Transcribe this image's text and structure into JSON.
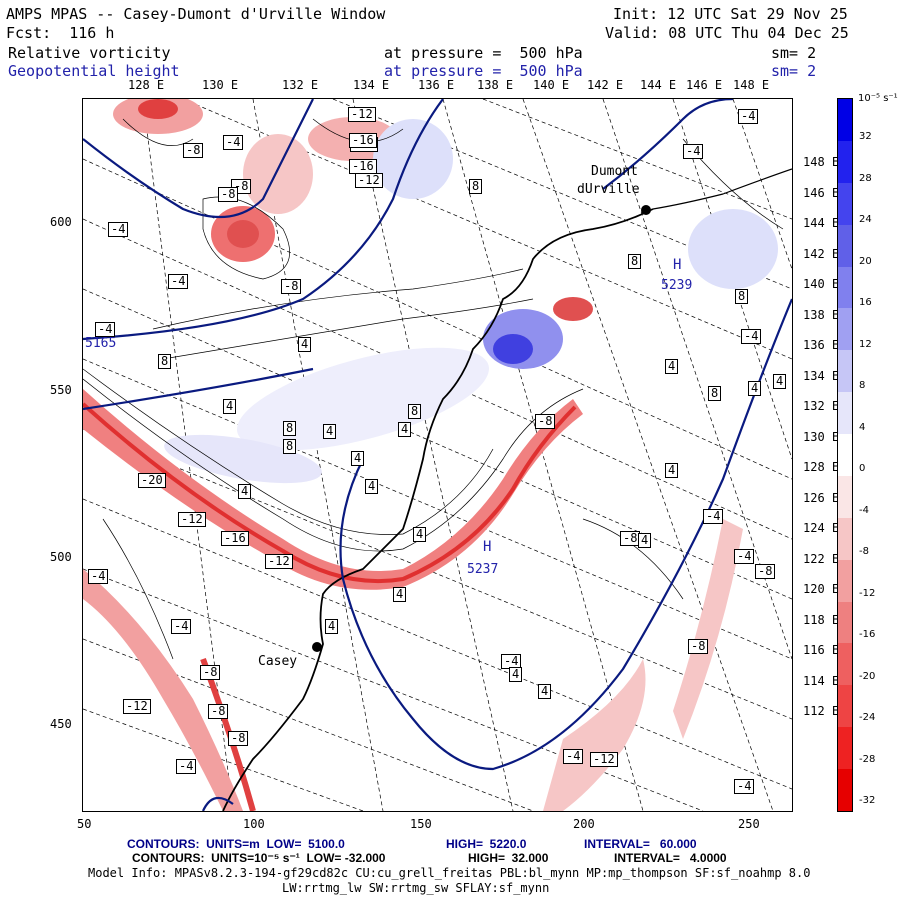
{
  "header": {
    "title": "AMPS MPAS -- Casey-Dumont d'Urville Window",
    "fcst": "Fcst:  116 h",
    "init": "Init: 12 UTC Sat 29 Nov 25",
    "valid": "Valid: 08 UTC Thu 04 Dec 25",
    "field1": "Relative vorticity",
    "field1_level": "at pressure =  500 hPa",
    "field1_sm": "sm= 2",
    "field2": "Geopotential height",
    "field2_level": "at pressure =  500 hPa",
    "field2_sm": "sm= 2"
  },
  "axes": {
    "top_lon": [
      "128 E",
      "130 E",
      "132 E",
      "134 E",
      "136 E",
      "138 E",
      "140 E",
      "142 E",
      "144 E",
      "146 E",
      "148 E"
    ],
    "right_lat": [
      "148 E",
      "146 E",
      "144 E",
      "142 E",
      "140 E",
      "138 E",
      "136 E",
      "134 E",
      "132 E",
      "130 E",
      "128 E",
      "126 E",
      "124 E",
      "122 E",
      "120 E",
      "118 E",
      "116 E",
      "114 E",
      "112 E"
    ],
    "bottom": [
      "50",
      "100",
      "150",
      "200",
      "250"
    ],
    "left": [
      "600",
      "550",
      "500",
      "450"
    ]
  },
  "colorbar": {
    "top_label": "10⁻⁵ s⁻¹",
    "ticks": [
      "32",
      "28",
      "24",
      "20",
      "16",
      "12",
      "8",
      "4",
      "0",
      "-4",
      "-8",
      "-12",
      "-16",
      "-20",
      "-24",
      "-28",
      "-32"
    ],
    "colors": [
      "#0000e6",
      "#2222ee",
      "#4444ee",
      "#6060e8",
      "#8080ee",
      "#a0a0f2",
      "#c6c6f6",
      "#e6e6fa",
      "#ffffff",
      "#fae6e6",
      "#f6c6c6",
      "#f2a0a0",
      "#ee8080",
      "#ee6060",
      "#ee4444",
      "#ee2222",
      "#e60000"
    ]
  },
  "map": {
    "stations": [
      {
        "name": "Dumont",
        "name2": "dUrville"
      },
      {
        "name": "Casey"
      }
    ],
    "highs": [
      {
        "symbol": "H",
        "value": "5239"
      },
      {
        "symbol": "H",
        "value": "5237"
      }
    ],
    "low_value": "5165",
    "contour_labels": [
      "-4",
      "-8",
      "-8",
      "-8",
      "-8",
      "-12",
      "-12",
      "-16",
      "-16",
      "-12",
      "-20",
      "-12",
      "-16",
      "-12",
      "-8",
      "-4",
      "-4",
      "-4",
      "-4",
      "-4",
      "-8",
      "-8",
      "-8",
      "-12",
      "-4",
      "4",
      "4",
      "4",
      "4",
      "4",
      "4",
      "4",
      "4",
      "4",
      "4",
      "4",
      "8",
      "8",
      "8",
      "8",
      "8",
      "8",
      "8",
      "8",
      "-4",
      "-4",
      "-4",
      "-4",
      "-4",
      "-8",
      "-8",
      "-12",
      "-8",
      "-4",
      "-4",
      "-4",
      "4",
      "4",
      "4",
      "4",
      "4",
      "4"
    ]
  },
  "footer": {
    "line1_a": "CONTOURS:  UNITS=m  LOW=  5100.0",
    "line1_b": "HIGH=  5220.0",
    "line1_c": "INTERVAL=   60.000",
    "line2_a": "CONTOURS:  UNITS=10⁻⁵ s⁻¹  LOW= -32.000",
    "line2_b": "HIGH=  32.000",
    "line2_c": "INTERVAL=   4.0000",
    "line3": "Model Info: MPASv8.2.3-194-gf29cd82c CU:cu_grell_freitas PBL:bl_mynn MP:mp_thompson SF:sf_noahmp 8.0",
    "line4": "LW:rrtmg_lw SW:rrtmg_sw SFLAY:sf_mynn"
  }
}
